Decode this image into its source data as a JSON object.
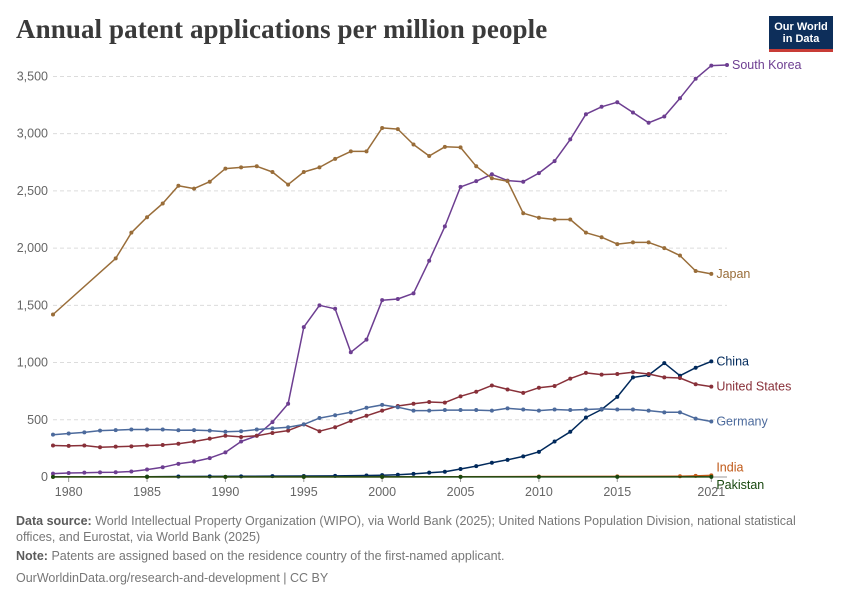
{
  "title": "Annual patent applications per million people",
  "logo": {
    "line1": "Our World",
    "line2": "in Data"
  },
  "footer": {
    "source_label": "Data source:",
    "source_text": "World Intellectual Property Organization (WIPO), via World Bank (2025); United Nations Population Division, national statistical offices, and Eurostat, via World Bank (2025)",
    "note_label": "Note:",
    "note_text": "Patents are assigned based on the residence country of the first-named applicant.",
    "link": "OurWorldinData.org/research-and-development | CC BY"
  },
  "chart_data": {
    "type": "line",
    "title": "Annual patent applications per million people",
    "xlabel": "",
    "ylabel": "",
    "xlim": [
      1979,
      2022
    ],
    "ylim": [
      0,
      3600
    ],
    "x_ticks": [
      1980,
      1985,
      1990,
      1995,
      2000,
      2005,
      2010,
      2015,
      2021
    ],
    "y_ticks": [
      0,
      500,
      1000,
      1500,
      2000,
      2500,
      3000,
      3500
    ],
    "y_tick_labels": [
      "0",
      "500",
      "1,000",
      "1,500",
      "2,000",
      "2,500",
      "3,000",
      "3,500"
    ],
    "grid": "horizontal dashed",
    "legend": "line end labels",
    "series": [
      {
        "name": "South Korea",
        "color": "#6d3e91",
        "x": [
          1979,
          1980,
          1981,
          1982,
          1983,
          1984,
          1985,
          1986,
          1987,
          1988,
          1989,
          1990,
          1991,
          1992,
          1993,
          1994,
          1995,
          1996,
          1997,
          1998,
          1999,
          2000,
          2001,
          2002,
          2003,
          2004,
          2005,
          2006,
          2007,
          2008,
          2009,
          2010,
          2011,
          2012,
          2013,
          2014,
          2015,
          2016,
          2017,
          2018,
          2019,
          2020,
          2021,
          2022
        ],
        "y": [
          30,
          35,
          38,
          40,
          42,
          48,
          65,
          85,
          115,
          135,
          165,
          215,
          310,
          360,
          480,
          640,
          1310,
          1500,
          1470,
          1090,
          1200,
          1545,
          1555,
          1605,
          1890,
          2190,
          2535,
          2585,
          2645,
          2590,
          2580,
          2655,
          2760,
          2950,
          3170,
          3235,
          3275,
          3185,
          3095,
          3150,
          3310,
          3480,
          3595,
          3600
        ]
      },
      {
        "name": "Japan",
        "color": "#996d39",
        "x": [
          1979,
          1983,
          1984,
          1985,
          1986,
          1987,
          1988,
          1989,
          1990,
          1991,
          1992,
          1993,
          1994,
          1995,
          1996,
          1997,
          1998,
          1999,
          2000,
          2001,
          2002,
          2003,
          2004,
          2005,
          2006,
          2007,
          2008,
          2009,
          2010,
          2011,
          2012,
          2013,
          2014,
          2015,
          2016,
          2017,
          2018,
          2019,
          2020,
          2021
        ],
        "y": [
          1420,
          1910,
          2135,
          2270,
          2390,
          2545,
          2520,
          2580,
          2695,
          2705,
          2715,
          2665,
          2555,
          2665,
          2705,
          2780,
          2845,
          2845,
          3050,
          3040,
          2905,
          2805,
          2885,
          2880,
          2715,
          2610,
          2585,
          2305,
          2265,
          2250,
          2250,
          2135,
          2095,
          2035,
          2050,
          2050,
          2000,
          1935,
          1800,
          1775
        ]
      },
      {
        "name": "China",
        "color": "#00295b",
        "x": [
          1985,
          1987,
          1989,
          1991,
          1993,
          1995,
          1997,
          1999,
          2000,
          2001,
          2002,
          2003,
          2004,
          2005,
          2006,
          2007,
          2008,
          2009,
          2010,
          2011,
          2012,
          2013,
          2014,
          2015,
          2016,
          2017,
          2018,
          2019,
          2020,
          2021
        ],
        "y": [
          3,
          4,
          5,
          6,
          8,
          9,
          10,
          13,
          16,
          20,
          27,
          38,
          46,
          70,
          95,
          125,
          150,
          180,
          220,
          310,
          395,
          520,
          590,
          700,
          870,
          890,
          995,
          885,
          955,
          1010
        ]
      },
      {
        "name": "United States",
        "color": "#883039",
        "x": [
          1979,
          1980,
          1981,
          1982,
          1983,
          1984,
          1985,
          1986,
          1987,
          1988,
          1989,
          1990,
          1991,
          1992,
          1993,
          1994,
          1995,
          1996,
          1997,
          1998,
          1999,
          2000,
          2001,
          2002,
          2003,
          2004,
          2005,
          2006,
          2007,
          2008,
          2009,
          2010,
          2011,
          2012,
          2013,
          2014,
          2015,
          2016,
          2017,
          2018,
          2019,
          2020,
          2021
        ],
        "y": [
          275,
          272,
          275,
          260,
          265,
          268,
          275,
          280,
          290,
          310,
          335,
          360,
          350,
          360,
          385,
          405,
          460,
          400,
          435,
          490,
          535,
          580,
          620,
          640,
          655,
          650,
          705,
          745,
          800,
          765,
          735,
          780,
          795,
          860,
          910,
          895,
          900,
          915,
          900,
          870,
          865,
          810,
          790
        ]
      },
      {
        "name": "Germany",
        "color": "#4c6a9c",
        "x": [
          1979,
          1980,
          1981,
          1982,
          1983,
          1984,
          1985,
          1986,
          1987,
          1988,
          1989,
          1990,
          1991,
          1992,
          1993,
          1994,
          1995,
          1996,
          1997,
          1998,
          1999,
          2000,
          2001,
          2002,
          2003,
          2004,
          2005,
          2006,
          2007,
          2008,
          2009,
          2010,
          2011,
          2012,
          2013,
          2014,
          2015,
          2016,
          2017,
          2018,
          2019,
          2020,
          2021
        ],
        "y": [
          370,
          380,
          390,
          405,
          410,
          415,
          415,
          415,
          408,
          410,
          405,
          395,
          400,
          415,
          425,
          435,
          460,
          515,
          540,
          565,
          605,
          630,
          610,
          580,
          580,
          585,
          585,
          585,
          580,
          600,
          590,
          580,
          590,
          585,
          590,
          595,
          590,
          590,
          580,
          565,
          565,
          510,
          485
        ]
      },
      {
        "name": "India",
        "color": "#c05917",
        "x": [
          1979,
          1985,
          1990,
          1995,
          2000,
          2005,
          2010,
          2015,
          2019,
          2020,
          2021
        ],
        "y": [
          1,
          1,
          1,
          1,
          1,
          2,
          4,
          5,
          7,
          10,
          14
        ]
      },
      {
        "name": "Pakistan",
        "color": "#18470f",
        "x": [
          1979,
          1985,
          1990,
          1995,
          2000,
          2005,
          2010,
          2015,
          2021
        ],
        "y": [
          1,
          1,
          1,
          1,
          1,
          1,
          1,
          1,
          1
        ]
      }
    ]
  }
}
